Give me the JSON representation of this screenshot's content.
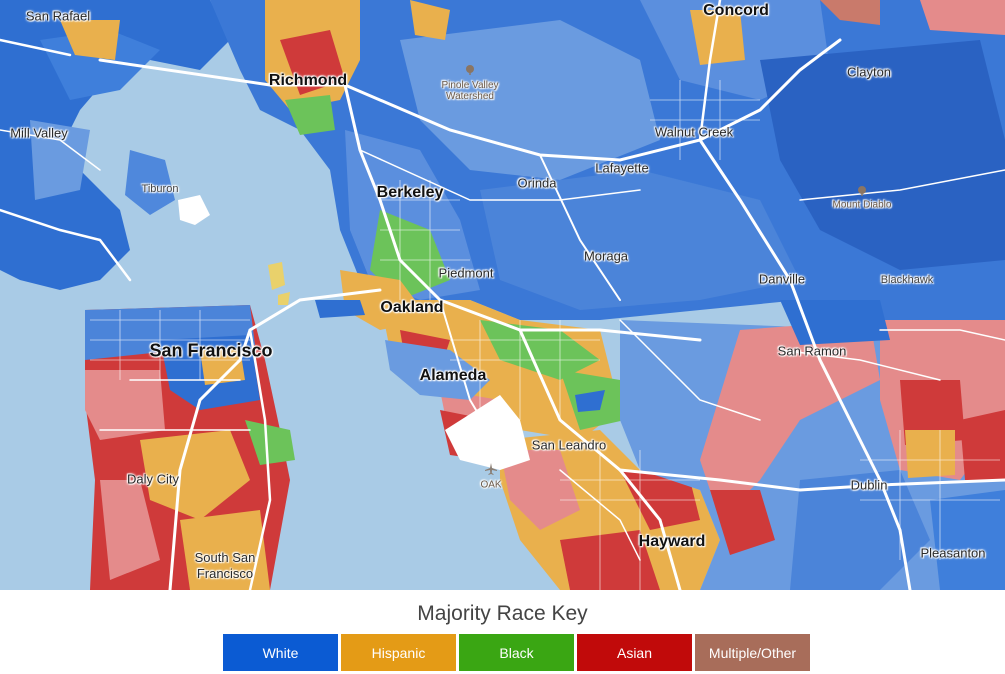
{
  "map": {
    "colors": {
      "water": "#a9cbe6",
      "white_majority": "#2f6fd1",
      "white_light": "#6a9be0",
      "hispanic": "#e9b04d",
      "black": "#6cc35a",
      "asian": "#cf3a3a",
      "asian_light": "#e48b8b",
      "roads": "#ffffff"
    },
    "places_large": [
      {
        "id": "san-francisco",
        "name": "San Francisco"
      }
    ],
    "places_bold": [
      {
        "id": "oakland",
        "name": "Oakland"
      },
      {
        "id": "richmond",
        "name": "Richmond"
      },
      {
        "id": "berkeley",
        "name": "Berkeley"
      },
      {
        "id": "alameda",
        "name": "Alameda"
      },
      {
        "id": "hayward",
        "name": "Hayward"
      },
      {
        "id": "concord",
        "name": "Concord"
      }
    ],
    "places_medium": [
      {
        "id": "san-rafael",
        "name": "San Rafael"
      },
      {
        "id": "mill-valley",
        "name": "Mill Valley"
      },
      {
        "id": "clayton",
        "name": "Clayton"
      },
      {
        "id": "walnut-creek",
        "name": "Walnut Creek"
      },
      {
        "id": "lafayette",
        "name": "Lafayette"
      },
      {
        "id": "orinda",
        "name": "Orinda"
      },
      {
        "id": "piedmont",
        "name": "Piedmont"
      },
      {
        "id": "moraga",
        "name": "Moraga"
      },
      {
        "id": "danville",
        "name": "Danville"
      },
      {
        "id": "san-ramon",
        "name": "San Ramon"
      },
      {
        "id": "san-leandro",
        "name": "San Leandro"
      },
      {
        "id": "daly-city",
        "name": "Daly City"
      },
      {
        "id": "dublin",
        "name": "Dublin"
      },
      {
        "id": "pleasanton",
        "name": "Pleasanton"
      }
    ],
    "places_small": [
      {
        "id": "tiburon",
        "name": "Tiburon"
      },
      {
        "id": "blackhawk",
        "name": "Blackhawk"
      }
    ],
    "south_sf": {
      "line1": "South San",
      "line2": "Francisco"
    },
    "pois": [
      {
        "id": "pinole-valley",
        "line1": "Pinole Valley",
        "line2": "Watershed",
        "icon": "tree-icon"
      },
      {
        "id": "mount-diablo",
        "line1": "Mount Diablo",
        "line2": "",
        "icon": "tree-icon"
      },
      {
        "id": "oak-airport",
        "line1": "OAK",
        "line2": "",
        "icon": "airplane-icon"
      }
    ]
  },
  "legend": {
    "title": "Majority Race Key",
    "items": [
      {
        "label": "White",
        "color": "#0b5bd3"
      },
      {
        "label": "Hispanic",
        "color": "#e49b16"
      },
      {
        "label": "Black",
        "color": "#3aa613"
      },
      {
        "label": "Asian",
        "color": "#c10a0a"
      },
      {
        "label": "Multiple/Other",
        "color": "#a86d5a"
      }
    ]
  }
}
